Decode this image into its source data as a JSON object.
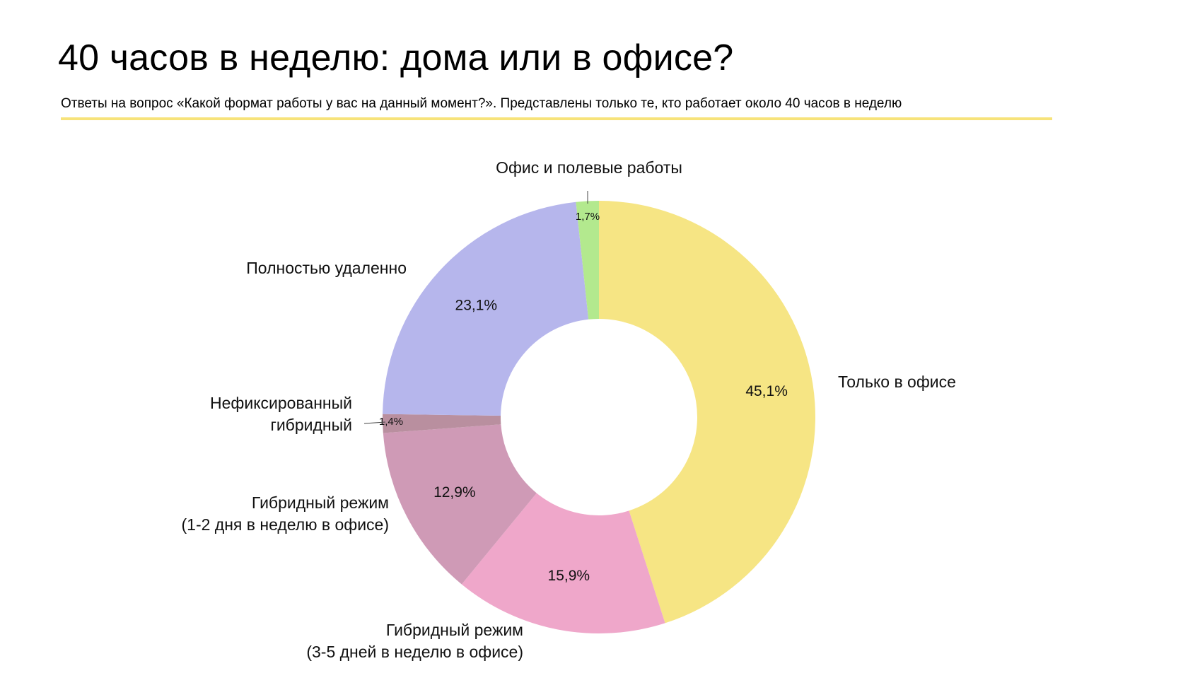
{
  "header": {
    "title": "40 часов в неделю: дома или в офисе?",
    "subtitle": "Ответы на вопрос «Какой формат работы у вас на данный момент?». Представлены только те, кто работает около 40 часов в неделю",
    "accent_color": "#f7e37a"
  },
  "chart_data": {
    "type": "pie",
    "variant": "donut",
    "start": "12 o'clock",
    "direction": "clockwise",
    "legend": "none",
    "slices": [
      {
        "label": [
          "Только в офисе"
        ],
        "value": 45.1,
        "value_label": "45,1%",
        "color": "#f6e584"
      },
      {
        "label": [
          "Гибридный режим",
          "(3-5 дней в неделю в офисе)"
        ],
        "value": 15.9,
        "value_label": "15,9%",
        "color": "#efa7ca"
      },
      {
        "label": [
          "Гибридный режим",
          "(1-2 дня в неделю в офисе)"
        ],
        "value": 12.9,
        "value_label": "12,9%",
        "color": "#cf9ab6"
      },
      {
        "label": [
          "Нефиксированный",
          "гибридный"
        ],
        "value": 1.4,
        "value_label": "1,4%",
        "color": "#b98f9f"
      },
      {
        "label": [
          "Полностью удаленно"
        ],
        "value": 23.1,
        "value_label": "23,1%",
        "color": "#b6b6ec"
      },
      {
        "label": [
          "Офис и полевые работы"
        ],
        "value": 1.7,
        "value_label": "1,7%",
        "color": "#b3e98e"
      }
    ]
  }
}
